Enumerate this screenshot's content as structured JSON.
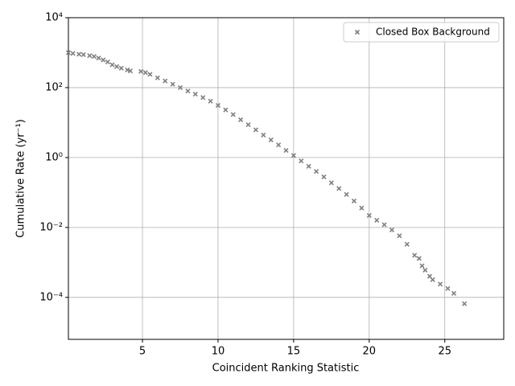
{
  "chart_data": {
    "type": "scatter",
    "xlabel": "Coincident Ranking Statistic",
    "ylabel": "Cumulative Rate (yr⁻¹)",
    "log_y": true,
    "grid": true,
    "legend_position": "upper right",
    "xlim": [
      0.1,
      28.9
    ],
    "ylim": [
      6.3e-06,
      10000
    ],
    "xticks": [
      5,
      10,
      15,
      20,
      25
    ],
    "yticks": [
      {
        "value": 0.0001,
        "label": "10⁻⁴"
      },
      {
        "value": 0.01,
        "label": "10⁻²"
      },
      {
        "value": 1,
        "label": "10⁰"
      },
      {
        "value": 100,
        "label": "10²"
      },
      {
        "value": 10000,
        "label": "10⁴"
      }
    ],
    "series": [
      {
        "name": "Closed Box Background",
        "color": "#808080",
        "x": [
          0.1,
          0.4,
          0.8,
          1.1,
          1.5,
          1.8,
          2.1,
          2.4,
          2.7,
          3.0,
          3.3,
          3.6,
          4.0,
          4.2,
          4.9,
          5.2,
          5.5,
          6.0,
          6.5,
          7.0,
          7.5,
          8.0,
          8.5,
          9.0,
          9.5,
          10.0,
          10.5,
          11.0,
          11.5,
          12.0,
          12.5,
          13.0,
          13.5,
          14.0,
          14.5,
          15.0,
          15.5,
          16.0,
          16.5,
          17.0,
          17.5,
          18.0,
          18.5,
          19.0,
          19.5,
          20.0,
          20.5,
          21.0,
          21.5,
          22.0,
          22.5,
          23.0,
          23.3,
          23.5,
          23.7,
          24.0,
          24.2,
          24.7,
          25.2,
          25.6,
          26.3
        ],
        "values": [
          1000,
          950,
          900,
          880,
          820,
          780,
          700,
          620,
          540,
          450,
          400,
          360,
          320,
          300,
          290,
          270,
          240,
          190,
          155,
          125,
          100,
          80,
          65,
          52,
          41,
          31,
          23,
          17,
          12,
          8.7,
          6.2,
          4.4,
          3.2,
          2.3,
          1.6,
          1.15,
          0.8,
          0.56,
          0.4,
          0.28,
          0.19,
          0.13,
          0.088,
          0.057,
          0.036,
          0.022,
          0.016,
          0.012,
          0.0085,
          0.0058,
          0.0033,
          0.0016,
          0.0013,
          0.0008,
          0.0006,
          0.0004,
          0.00032,
          0.00024,
          0.00018,
          0.00013,
          6.6e-05
        ]
      }
    ]
  }
}
